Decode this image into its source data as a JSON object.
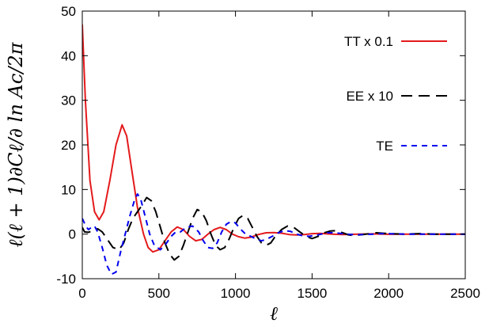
{
  "chart_data": {
    "type": "line",
    "xlabel": "ℓ",
    "ylabel": "ℓ(ℓ + 1)∂Cℓ/∂ ln Ac/2π",
    "xlim": [
      0,
      2500
    ],
    "ylim": [
      -10,
      50
    ],
    "xticks": [
      0,
      500,
      1000,
      1500,
      2000,
      2500
    ],
    "yticks": [
      -10,
      0,
      10,
      20,
      30,
      40,
      50
    ],
    "grid": false,
    "legend_position": "top-right",
    "series": [
      {
        "name": "TT x 0.1",
        "color": "#e41a1c",
        "dash": "solid",
        "points": [
          [
            0,
            47
          ],
          [
            20,
            30
          ],
          [
            50,
            12
          ],
          [
            80,
            5
          ],
          [
            110,
            3.2
          ],
          [
            140,
            5
          ],
          [
            180,
            12
          ],
          [
            220,
            20
          ],
          [
            260,
            24.5
          ],
          [
            290,
            22
          ],
          [
            320,
            15
          ],
          [
            360,
            6
          ],
          [
            400,
            0
          ],
          [
            430,
            -3
          ],
          [
            460,
            -4
          ],
          [
            500,
            -3.5
          ],
          [
            540,
            -1.5
          ],
          [
            580,
            0.5
          ],
          [
            620,
            1.6
          ],
          [
            660,
            1
          ],
          [
            700,
            -0.5
          ],
          [
            740,
            -1.5
          ],
          [
            780,
            -1.2
          ],
          [
            820,
            0
          ],
          [
            860,
            1
          ],
          [
            900,
            1.5
          ],
          [
            940,
            1
          ],
          [
            980,
            0
          ],
          [
            1020,
            -0.6
          ],
          [
            1060,
            -0.9
          ],
          [
            1100,
            -0.7
          ],
          [
            1150,
            -0.1
          ],
          [
            1200,
            0.3
          ],
          [
            1250,
            0.35
          ],
          [
            1300,
            0.2
          ],
          [
            1350,
            -0.1
          ],
          [
            1400,
            -0.2
          ],
          [
            1450,
            -0.1
          ],
          [
            1500,
            0.1
          ],
          [
            1550,
            0.15
          ],
          [
            1600,
            0.05
          ],
          [
            1650,
            -0.05
          ],
          [
            1700,
            -0.1
          ],
          [
            1800,
            0
          ],
          [
            1900,
            0.05
          ],
          [
            2000,
            -0.05
          ],
          [
            2100,
            0
          ],
          [
            2200,
            0
          ],
          [
            2300,
            0
          ],
          [
            2400,
            0
          ],
          [
            2500,
            0
          ]
        ]
      },
      {
        "name": "EE x 10",
        "color": "#000000",
        "dash": "long-dash",
        "points": [
          [
            0,
            1.5
          ],
          [
            15,
            0.5
          ],
          [
            40,
            0.4
          ],
          [
            70,
            0.8
          ],
          [
            100,
            1.2
          ],
          [
            130,
            0.5
          ],
          [
            160,
            -1
          ],
          [
            200,
            -3
          ],
          [
            240,
            -3.5
          ],
          [
            270,
            -2
          ],
          [
            300,
            1
          ],
          [
            330,
            3.5
          ],
          [
            360,
            5
          ],
          [
            390,
            6.5
          ],
          [
            420,
            8.2
          ],
          [
            450,
            7.5
          ],
          [
            480,
            5
          ],
          [
            510,
            1.5
          ],
          [
            540,
            -2
          ],
          [
            570,
            -4.5
          ],
          [
            600,
            -5.8
          ],
          [
            630,
            -5
          ],
          [
            660,
            -2.5
          ],
          [
            690,
            0.5
          ],
          [
            720,
            3.5
          ],
          [
            750,
            5.5
          ],
          [
            780,
            5
          ],
          [
            810,
            3
          ],
          [
            840,
            0
          ],
          [
            870,
            -2.5
          ],
          [
            900,
            -3.5
          ],
          [
            930,
            -3
          ],
          [
            960,
            -1
          ],
          [
            990,
            1.5
          ],
          [
            1020,
            3.5
          ],
          [
            1050,
            4.2
          ],
          [
            1080,
            3.5
          ],
          [
            1110,
            1.5
          ],
          [
            1140,
            -0.5
          ],
          [
            1170,
            -2
          ],
          [
            1200,
            -2.5
          ],
          [
            1230,
            -2
          ],
          [
            1260,
            -0.5
          ],
          [
            1300,
            1
          ],
          [
            1340,
            1.8
          ],
          [
            1380,
            1.5
          ],
          [
            1420,
            0.5
          ],
          [
            1460,
            -0.5
          ],
          [
            1500,
            -1
          ],
          [
            1540,
            -0.5
          ],
          [
            1580,
            0.3
          ],
          [
            1620,
            0.7
          ],
          [
            1660,
            0.8
          ],
          [
            1700,
            0.3
          ],
          [
            1740,
            -0.2
          ],
          [
            1780,
            -0.3
          ],
          [
            1850,
            0
          ],
          [
            1920,
            0.3
          ],
          [
            2000,
            0.1
          ],
          [
            2100,
            0
          ],
          [
            2200,
            0.1
          ],
          [
            2300,
            0
          ],
          [
            2400,
            0
          ],
          [
            2500,
            0
          ]
        ]
      },
      {
        "name": "TE",
        "color": "#0000ee",
        "dash": "short-dash",
        "points": [
          [
            0,
            3.5
          ],
          [
            20,
            2
          ],
          [
            40,
            1
          ],
          [
            60,
            1.5
          ],
          [
            80,
            1.8
          ],
          [
            100,
            0.5
          ],
          [
            130,
            -3
          ],
          [
            160,
            -7
          ],
          [
            190,
            -9
          ],
          [
            220,
            -8.5
          ],
          [
            250,
            -4
          ],
          [
            280,
            0
          ],
          [
            310,
            4
          ],
          [
            340,
            7.5
          ],
          [
            360,
            9
          ],
          [
            380,
            8
          ],
          [
            410,
            4
          ],
          [
            440,
            0
          ],
          [
            470,
            -2.5
          ],
          [
            510,
            -3.5
          ],
          [
            550,
            -2
          ],
          [
            580,
            -0.5
          ],
          [
            610,
            0.5
          ],
          [
            640,
            0.5
          ],
          [
            680,
            1.5
          ],
          [
            720,
            1.8
          ],
          [
            760,
            0.5
          ],
          [
            790,
            -1.5
          ],
          [
            820,
            -3
          ],
          [
            850,
            -3.2
          ],
          [
            880,
            -2
          ],
          [
            910,
            0.5
          ],
          [
            940,
            2.2
          ],
          [
            970,
            2.8
          ],
          [
            1000,
            2.5
          ],
          [
            1030,
            1.2
          ],
          [
            1060,
            0.2
          ],
          [
            1100,
            -0.5
          ],
          [
            1140,
            -1.2
          ],
          [
            1170,
            -1.5
          ],
          [
            1200,
            -1.2
          ],
          [
            1240,
            -0.5
          ],
          [
            1280,
            0.3
          ],
          [
            1320,
            0.8
          ],
          [
            1360,
            0.6
          ],
          [
            1400,
            0
          ],
          [
            1440,
            -0.4
          ],
          [
            1480,
            -0.5
          ],
          [
            1520,
            -0.3
          ],
          [
            1560,
            0
          ],
          [
            1600,
            0.3
          ],
          [
            1650,
            0.3
          ],
          [
            1700,
            0.1
          ],
          [
            1750,
            -0.1
          ],
          [
            1800,
            -0.15
          ],
          [
            1850,
            -0.1
          ],
          [
            1900,
            0
          ],
          [
            1950,
            0.1
          ],
          [
            2000,
            0.1
          ],
          [
            2100,
            0
          ],
          [
            2200,
            0
          ],
          [
            2300,
            0
          ],
          [
            2400,
            0
          ],
          [
            2500,
            0
          ]
        ]
      }
    ]
  }
}
